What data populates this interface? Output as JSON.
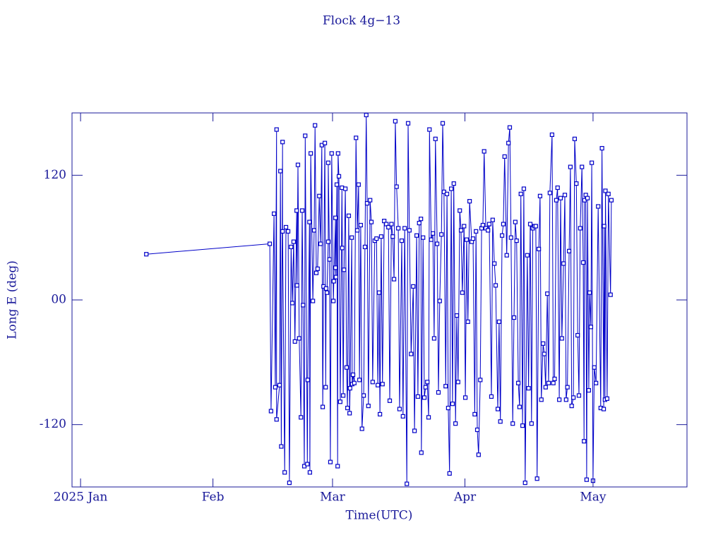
{
  "chart_data": {
    "type": "line",
    "title": "Flock 4g−13",
    "xlabel": "Time(UTC)",
    "ylabel": "Long E (deg)",
    "color": "#0000c8",
    "markers": true,
    "xlim": [
      -2,
      142
    ],
    "ylim": [
      -180,
      180
    ],
    "xticks": [
      {
        "value": 0,
        "label": "2025 Jan"
      },
      {
        "value": 31,
        "label": "Feb"
      },
      {
        "value": 59,
        "label": "Mar"
      },
      {
        "value": 90,
        "label": "Apr"
      },
      {
        "value": 120,
        "label": "May"
      }
    ],
    "yticks": [
      -120,
      {
        "value": 0,
        "label": "00"
      },
      120
    ],
    "x": [
      15.4,
      44.3,
      44.6,
      45.3,
      45.6,
      45.9,
      45.9,
      46.6,
      46.8,
      47.0,
      47.3,
      47.3,
      47.8,
      48.1,
      48.6,
      48.9,
      49.3,
      49.6,
      49.9,
      50.2,
      50.6,
      50.7,
      50.9,
      51.2,
      51.6,
      51.9,
      52.1,
      52.4,
      52.6,
      53.1,
      53.2,
      53.6,
      53.7,
      53.9,
      54.4,
      54.7,
      54.9,
      55.2,
      55.5,
      55.9,
      56.2,
      56.5,
      56.7,
      56.9,
      57.2,
      57.4,
      57.5,
      57.7,
      58.0,
      58.0,
      58.3,
      58.5,
      58.8,
      59.2,
      59.3,
      59.7,
      59.7,
      59.8,
      60.0,
      60.2,
      60.3,
      60.5,
      60.8,
      61.2,
      61.3,
      61.5,
      61.7,
      62.0,
      62.3,
      62.5,
      62.8,
      63.0,
      63.1,
      63.5,
      63.6,
      63.8,
      64.1,
      64.5,
      64.8,
      65.1,
      65.3,
      65.6,
      65.9,
      66.3,
      66.6,
      66.9,
      67.1,
      67.4,
      67.8,
      68.1,
      68.4,
      68.9,
      69.3,
      69.6,
      69.9,
      70.1,
      70.4,
      70.7,
      71.1,
      71.6,
      72.1,
      72.4,
      72.8,
      73.1,
      73.4,
      73.7,
      74.0,
      74.4,
      74.7,
      75.2,
      75.5,
      75.9,
      76.4,
      76.7,
      77.0,
      77.4,
      77.9,
      78.2,
      78.7,
      79.0,
      79.3,
      79.7,
      79.8,
      80.2,
      80.5,
      80.8,
      81.2,
      81.5,
      81.7,
      82.1,
      82.5,
      82.8,
      83.1,
      83.5,
      83.8,
      84.1,
      84.5,
      84.8,
      85.1,
      85.5,
      85.8,
      86.1,
      86.4,
      86.8,
      87.1,
      87.4,
      87.8,
      88.1,
      88.4,
      88.8,
      89.1,
      89.4,
      89.8,
      90.1,
      90.4,
      90.7,
      91.1,
      91.6,
      91.9,
      92.3,
      92.6,
      92.9,
      93.2,
      93.6,
      93.9,
      94.2,
      94.5,
      94.9,
      95.4,
      95.7,
      96.2,
      96.5,
      96.9,
      97.2,
      97.7,
      98.0,
      98.3,
      98.7,
      99.0,
      99.3,
      99.8,
      100.2,
      100.5,
      100.8,
      101.2,
      101.5,
      101.8,
      102.1,
      102.5,
      102.8,
      103.1,
      103.5,
      103.8,
      104.1,
      104.6,
      104.9,
      105.3,
      105.6,
      105.9,
      106.3,
      106.6,
      106.9,
      107.3,
      107.6,
      107.9,
      108.3,
      108.6,
      108.9,
      109.3,
      109.6,
      109.9,
      110.4,
      110.7,
      111.0,
      111.4,
      111.7,
      112.1,
      112.4,
      112.7,
      113.1,
      113.4,
      113.7,
      114.0,
      114.4,
      114.7,
      115.0,
      115.4,
      115.7,
      116.1,
      116.4,
      116.7,
      117.0,
      117.4,
      117.7,
      117.9,
      118.0,
      118.3,
      118.5,
      118.7,
      119.0,
      119.2,
      119.5,
      119.7,
      120.0,
      120.3,
      120.7,
      121.2,
      121.8,
      122.1,
      122.5,
      122.6,
      122.8,
      122.9,
      123.3,
      123.6,
      124.1,
      124.3
    ],
    "values": [
      44,
      54,
      -107,
      83,
      -84,
      164,
      -115,
      -82,
      124,
      -141,
      152,
      66,
      -166,
      70,
      66,
      -176,
      51,
      -3,
      56,
      -40,
      86,
      14,
      130,
      -37,
      -113,
      86,
      -5,
      -160,
      158,
      -158,
      -77,
      75,
      -166,
      141,
      -1,
      67,
      168,
      26,
      30,
      100,
      54,
      149,
      -103,
      13,
      151,
      -84,
      11,
      7,
      56,
      132,
      39,
      -156,
      141,
      -1,
      18,
      79,
      31,
      22,
      111,
      -160,
      141,
      119,
      -98,
      108,
      50,
      -92,
      29,
      107,
      -65,
      -104,
      81,
      -109,
      -85,
      60,
      -81,
      -72,
      -80,
      156,
      67,
      111,
      -77,
      72,
      -124,
      -92,
      51,
      178,
      93,
      -102,
      96,
      75,
      -79,
      57,
      59,
      -82,
      7,
      -110,
      61,
      -81,
      76,
      73,
      70,
      -97,
      73,
      61,
      20,
      172,
      109,
      69,
      -105,
      57,
      -112,
      69,
      -177,
      170,
      67,
      -52,
      13,
      -126,
      62,
      -93,
      74,
      78,
      -147,
      60,
      -94,
      -84,
      -79,
      -113,
      164,
      58,
      64,
      -37,
      155,
      54,
      -89,
      -1,
      63,
      170,
      104,
      -83,
      102,
      -104,
      -167,
      107,
      -100,
      112,
      -119,
      -15,
      -79,
      86,
      67,
      7,
      71,
      -94,
      58,
      -21,
      95,
      56,
      59,
      -110,
      66,
      -125,
      -149,
      -77,
      69,
      72,
      143,
      69,
      67,
      73,
      -93,
      77,
      35,
      14,
      -105,
      -21,
      -117,
      62,
      73,
      138,
      43,
      151,
      166,
      60,
      -119,
      -17,
      75,
      57,
      -80,
      -103,
      102,
      -121,
      107,
      -176,
      43,
      -85,
      73,
      -119,
      69,
      71,
      71,
      -172,
      49,
      100,
      -96,
      -42,
      -52,
      -84,
      6,
      -80,
      103,
      159,
      -80,
      -76,
      96,
      108,
      -96,
      98,
      -37,
      35,
      101,
      -96,
      -84,
      47,
      128,
      -102,
      -94,
      155,
      112,
      -34,
      -92,
      69,
      128,
      36,
      -136,
      96,
      101,
      -173,
      98,
      -87,
      7,
      -26,
      132,
      -174,
      -65,
      -80,
      90,
      -104,
      146,
      -105,
      71,
      -96,
      105,
      -95,
      102,
      5,
      96
    ]
  }
}
